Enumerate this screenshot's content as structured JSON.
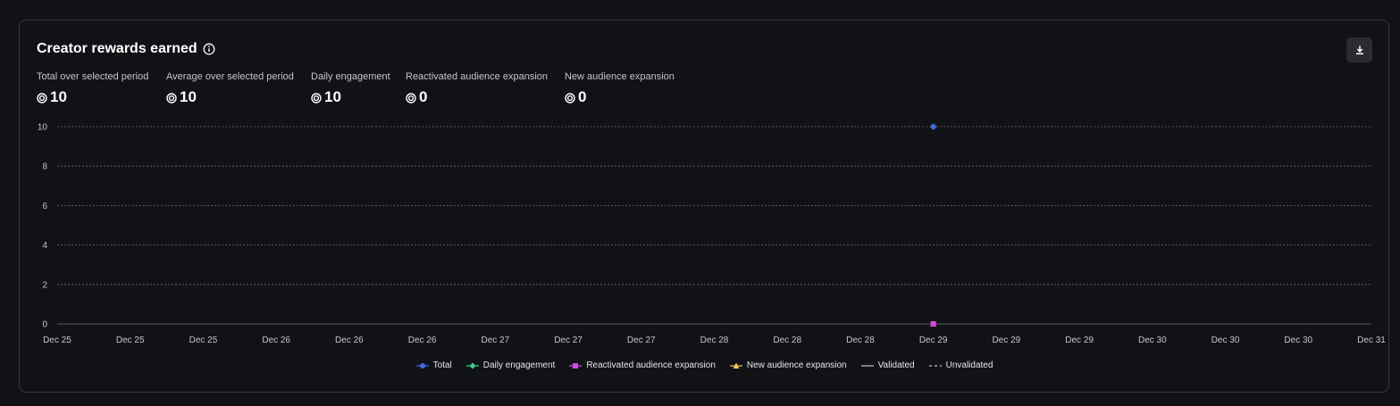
{
  "header": {
    "title": "Creator rewards earned"
  },
  "stats": [
    {
      "label": "Total over selected period",
      "value": "10"
    },
    {
      "label": "Average over selected period",
      "value": "10"
    },
    {
      "label": "Daily engagement",
      "value": "10"
    },
    {
      "label": "Reactivated audience expansion",
      "value": "0"
    },
    {
      "label": "New audience expansion",
      "value": "0"
    }
  ],
  "colors": {
    "total": "#4169e1",
    "daily_engagement": "#3ecf8e",
    "reactivated": "#d946ef",
    "new_audience": "#f5c85a",
    "grid": "#6b6e75",
    "axis_text": "#c4c6cc"
  },
  "legend": [
    {
      "name": "Total",
      "marker": "circle",
      "color": "#4169e1"
    },
    {
      "name": "Daily engagement",
      "marker": "diamond",
      "color": "#3ecf8e"
    },
    {
      "name": "Reactivated audience expansion",
      "marker": "square",
      "color": "#d946ef"
    },
    {
      "name": "New audience expansion",
      "marker": "triangle",
      "color": "#f5c85a"
    },
    {
      "name": "Validated",
      "marker": "solid-line",
      "color": "#c4c6cc"
    },
    {
      "name": "Unvalidated",
      "marker": "dashed-line",
      "color": "#c4c6cc"
    }
  ],
  "chart_data": {
    "type": "line",
    "x": [
      "Dec 25",
      "Dec 25",
      "Dec 25",
      "Dec 26",
      "Dec 26",
      "Dec 26",
      "Dec 27",
      "Dec 27",
      "Dec 27",
      "Dec 28",
      "Dec 28",
      "Dec 28",
      "Dec 29",
      "Dec 29",
      "Dec 29",
      "Dec 30",
      "Dec 30",
      "Dec 30",
      "Dec 31"
    ],
    "ylim": [
      0,
      10
    ],
    "yticks": [
      0,
      2,
      4,
      6,
      8,
      10
    ],
    "grid": true,
    "legend_position": "bottom-center",
    "series": [
      {
        "name": "Total",
        "marker": "circle",
        "color": "#4169e1",
        "points": [
          {
            "x": "Dec 29",
            "y": 10
          }
        ]
      },
      {
        "name": "Daily engagement",
        "marker": "diamond",
        "color": "#3ecf8e",
        "points": [
          {
            "x": "Dec 29",
            "y": 10
          }
        ]
      },
      {
        "name": "Reactivated audience expansion",
        "marker": "square",
        "color": "#d946ef",
        "points": [
          {
            "x": "Dec 29",
            "y": 0
          }
        ]
      },
      {
        "name": "New audience expansion",
        "marker": "triangle",
        "color": "#f5c85a",
        "points": [
          {
            "x": "Dec 29",
            "y": 0
          }
        ]
      }
    ]
  }
}
